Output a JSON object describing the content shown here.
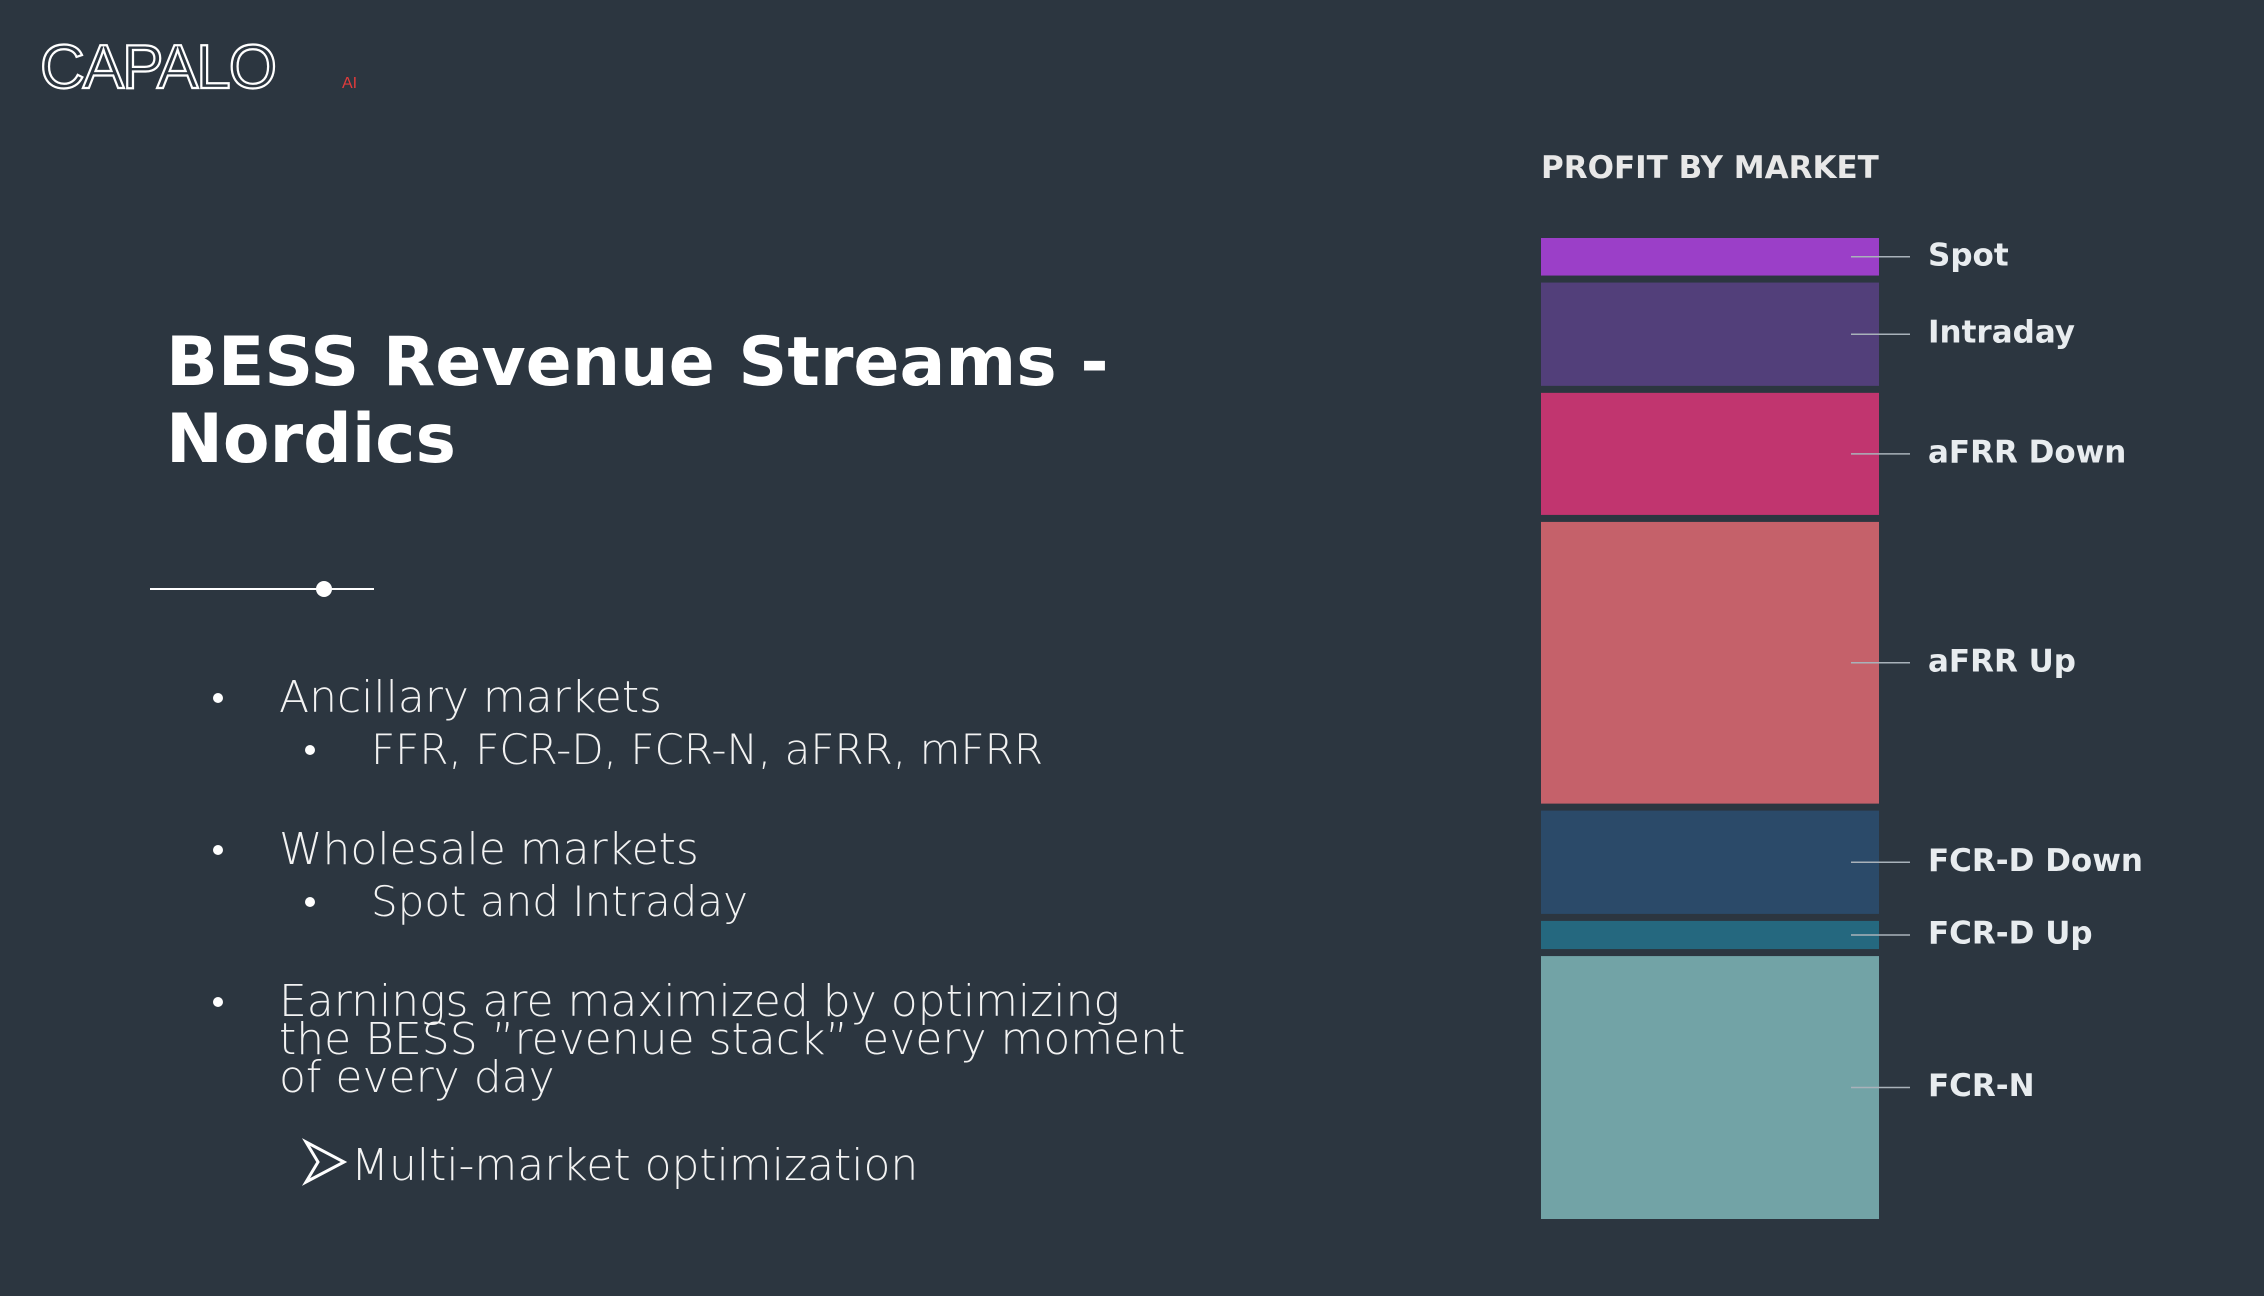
{
  "logo": {
    "name": "CAPALO",
    "suffix": "AI"
  },
  "title": [
    "BESS Revenue Streams -",
    "Nordics"
  ],
  "bullets": [
    {
      "text": [
        "Ancillary markets"
      ],
      "sub": [
        "FFR, FCR-D, FCR-N, aFRR, mFRR"
      ]
    },
    {
      "text": [
        "Wholesale markets"
      ],
      "sub": [
        "Spot and Intraday"
      ]
    },
    {
      "text": [
        "Earnings are maximized by optimizing",
        "the BESS ”revenue stack” every moment",
        "of every day"
      ],
      "sub": []
    }
  ],
  "conclusion": "Multi-market optimization",
  "chart_data": {
    "type": "stacked_bar",
    "title": "PROFIT BY MARKET",
    "series": [
      {
        "name": "Spot",
        "color": "#9b3fc8",
        "values": [
          4
        ]
      },
      {
        "name": "Intraday",
        "color": "#523f7a",
        "values": [
          11
        ]
      },
      {
        "name": "aFRR Down",
        "color": "#c1356f",
        "values": [
          13
        ]
      },
      {
        "name": "aFRR Up",
        "color": "#c5616a",
        "values": [
          30
        ]
      },
      {
        "name": "FCR-D Down",
        "color": "#2b4a69",
        "values": [
          11
        ]
      },
      {
        "name": "FCR-D Up",
        "color": "#25687f",
        "values": [
          3
        ]
      },
      {
        "name": "FCR-N",
        "color": "#72a3a6",
        "values": [
          28
        ]
      }
    ]
  }
}
